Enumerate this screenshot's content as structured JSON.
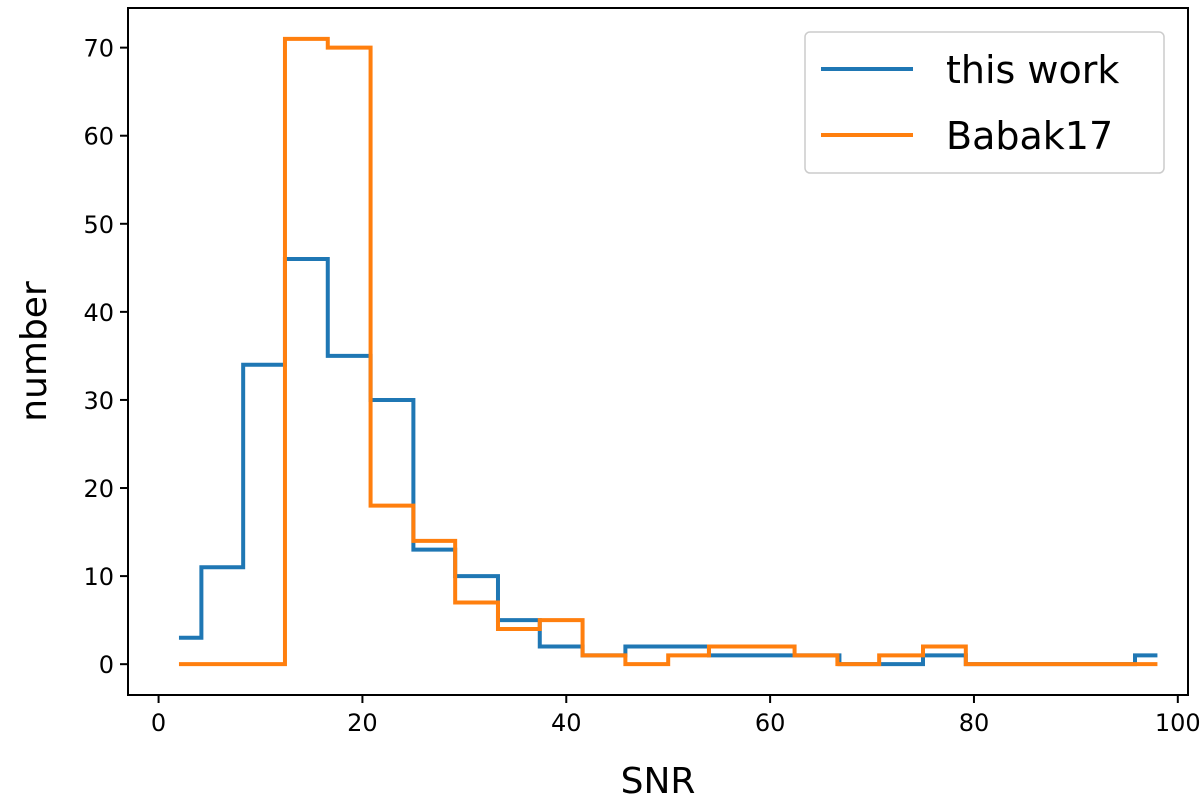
{
  "chart_data": {
    "type": "line",
    "style": "step-histogram",
    "xlabel": "SNR",
    "ylabel": "number",
    "xlim": [
      -3,
      101
    ],
    "ylim": [
      -3.5,
      74.5
    ],
    "xticks": [
      0,
      20,
      40,
      60,
      80,
      100
    ],
    "yticks": [
      0,
      10,
      20,
      30,
      40,
      50,
      60,
      70
    ],
    "grid": false,
    "legend_position": "top-right",
    "series": [
      {
        "name": "this work",
        "color": "#1f77b4",
        "x": [
          2,
          4.2,
          4.2,
          8.3,
          8.3,
          12.4,
          12.4,
          16.6,
          16.6,
          20.8,
          20.8,
          25,
          25,
          29.1,
          29.1,
          33.3,
          33.3,
          37.4,
          37.4,
          41.6,
          41.6,
          45.8,
          45.8,
          54,
          54,
          66.8,
          66.8,
          70.7,
          70.7,
          75,
          75,
          79.2,
          79.2,
          95.8,
          95.8,
          98
        ],
        "y": [
          3,
          3,
          11,
          11,
          34,
          34,
          46,
          46,
          35,
          35,
          30,
          30,
          13,
          13,
          10,
          10,
          5,
          5,
          2,
          2,
          1,
          1,
          2,
          2,
          1,
          1,
          0,
          0,
          0,
          0,
          1,
          1,
          0,
          0,
          1,
          1
        ]
      },
      {
        "name": "Babak17",
        "color": "#ff7f0e",
        "x": [
          2,
          12.4,
          12.4,
          16.6,
          16.6,
          20.8,
          20.8,
          25,
          25,
          29.1,
          29.1,
          33.3,
          33.3,
          37.4,
          37.4,
          41.6,
          41.6,
          45.8,
          45.8,
          50,
          50,
          54,
          54,
          62.4,
          62.4,
          66.6,
          66.6,
          70.7,
          70.7,
          75,
          75,
          79.2,
          79.2,
          98
        ],
        "y": [
          0,
          0,
          71,
          71,
          70,
          70,
          18,
          18,
          14,
          14,
          7,
          7,
          4,
          4,
          5,
          5,
          1,
          1,
          0,
          0,
          1,
          1,
          2,
          2,
          1,
          1,
          0,
          0,
          1,
          1,
          2,
          2,
          0,
          0
        ]
      }
    ]
  }
}
